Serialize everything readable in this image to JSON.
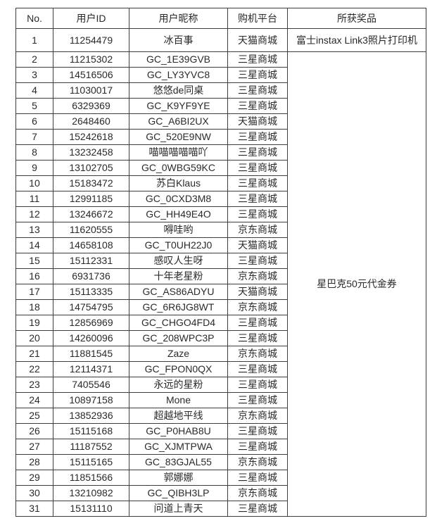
{
  "table": {
    "headers": [
      "No.",
      "用户ID",
      "用户昵称",
      "购机平台",
      "所获奖品"
    ],
    "prizes": {
      "first": "富士instax Link3照片打印机",
      "rest": "星巴克50元代金券"
    },
    "colors": {
      "border": "#3d3d3d",
      "text": "#2a2a2a",
      "background": "#ffffff"
    },
    "rows": [
      {
        "no": "1",
        "user_id": "11254479",
        "nickname": "冰百事",
        "platform": "天猫商城"
      },
      {
        "no": "2",
        "user_id": "11215302",
        "nickname": "GC_1E39GVB",
        "platform": "三星商城"
      },
      {
        "no": "3",
        "user_id": "14516506",
        "nickname": "GC_LY3YVC8",
        "platform": "三星商城"
      },
      {
        "no": "4",
        "user_id": "11030017",
        "nickname": "悠悠de同桌",
        "platform": "三星商城"
      },
      {
        "no": "5",
        "user_id": "6329369",
        "nickname": "GC_K9YF9YE",
        "platform": "三星商城"
      },
      {
        "no": "6",
        "user_id": "2648460",
        "nickname": "GC_A6BI2UX",
        "platform": "天猫商城"
      },
      {
        "no": "7",
        "user_id": "15242618",
        "nickname": "GC_520E9NW",
        "platform": "三星商城"
      },
      {
        "no": "8",
        "user_id": "13232458",
        "nickname": "喵喵喵喵喵吖",
        "platform": "三星商城"
      },
      {
        "no": "9",
        "user_id": "13102705",
        "nickname": "GC_0WBG59KC",
        "platform": "三星商城"
      },
      {
        "no": "10",
        "user_id": "15183472",
        "nickname": "苏白Klaus",
        "platform": "三星商城"
      },
      {
        "no": "11",
        "user_id": "12991185",
        "nickname": "GC_0CXD3M8",
        "platform": "三星商城"
      },
      {
        "no": "12",
        "user_id": "13246672",
        "nickname": "GC_HH49E4O",
        "platform": "三星商城"
      },
      {
        "no": "13",
        "user_id": "11620555",
        "nickname": "嘚哇哟",
        "platform": "京东商城"
      },
      {
        "no": "14",
        "user_id": "14658108",
        "nickname": "GC_T0UH22J0",
        "platform": "天猫商城"
      },
      {
        "no": "15",
        "user_id": "15112331",
        "nickname": "感叹人生呀",
        "platform": "三星商城"
      },
      {
        "no": "16",
        "user_id": "6931736",
        "nickname": "十年老星粉",
        "platform": "京东商城"
      },
      {
        "no": "17",
        "user_id": "15113335",
        "nickname": "GC_AS86ADYU",
        "platform": "天猫商城"
      },
      {
        "no": "18",
        "user_id": "14754795",
        "nickname": "GC_6R6JG8WT",
        "platform": "京东商城"
      },
      {
        "no": "19",
        "user_id": "12856969",
        "nickname": "GC_CHGO4FD4",
        "platform": "三星商城"
      },
      {
        "no": "20",
        "user_id": "14260096",
        "nickname": "GC_208WPC3P",
        "platform": "三星商城"
      },
      {
        "no": "21",
        "user_id": "11881545",
        "nickname": "Zaze",
        "platform": "京东商城"
      },
      {
        "no": "22",
        "user_id": "12114371",
        "nickname": "GC_FPON0QX",
        "platform": "三星商城"
      },
      {
        "no": "23",
        "user_id": "7405546",
        "nickname": "永远的星粉",
        "platform": "三星商城"
      },
      {
        "no": "24",
        "user_id": "10897158",
        "nickname": "Mone",
        "platform": "三星商城"
      },
      {
        "no": "25",
        "user_id": "13852936",
        "nickname": "超越地平线",
        "platform": "京东商城"
      },
      {
        "no": "26",
        "user_id": "15115168",
        "nickname": "GC_P0HAB8U",
        "platform": "三星商城"
      },
      {
        "no": "27",
        "user_id": "11187552",
        "nickname": "GC_XJMTPWA",
        "platform": "三星商城"
      },
      {
        "no": "28",
        "user_id": "15115165",
        "nickname": "GC_83GJAL55",
        "platform": "京东商城"
      },
      {
        "no": "29",
        "user_id": "11851566",
        "nickname": "郭娜娜",
        "platform": "三星商城"
      },
      {
        "no": "30",
        "user_id": "13210982",
        "nickname": "GC_QIBH3LP",
        "platform": "京东商城"
      },
      {
        "no": "31",
        "user_id": "15131110",
        "nickname": "问道上青天",
        "platform": "三星商城"
      }
    ]
  }
}
